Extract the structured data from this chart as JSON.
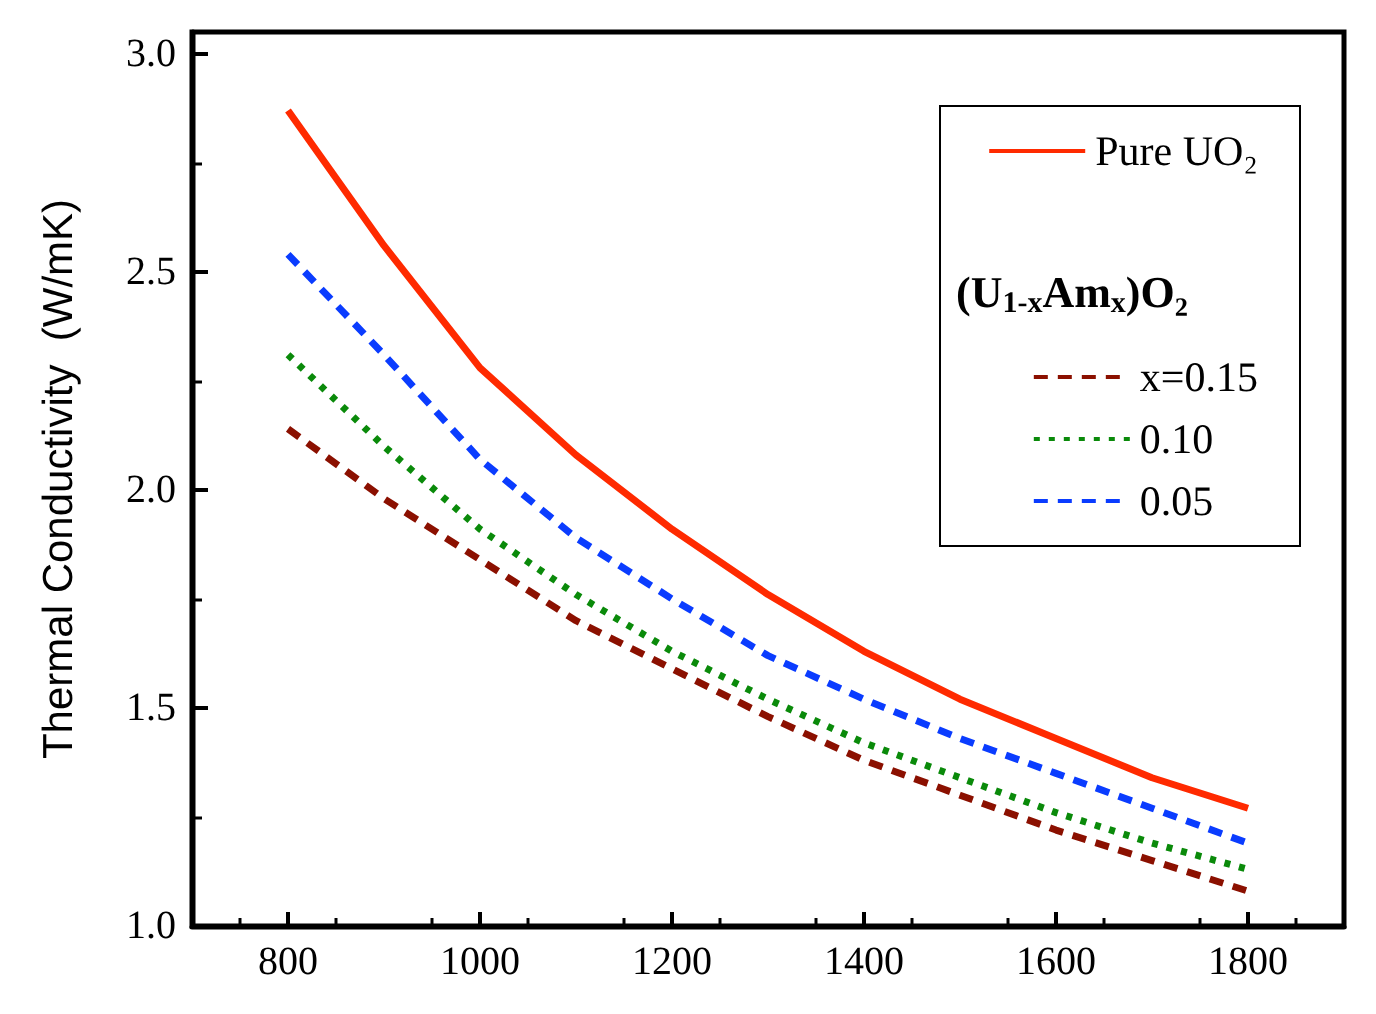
{
  "chart_data": {
    "type": "line",
    "ylabel": "Thermal Conductivity  (W/mK)",
    "legend_title": "(U$_{1-x}$Am$_{x}$)O₂",
    "x": [
      800,
      900,
      1000,
      1100,
      1200,
      1300,
      1400,
      1500,
      1600,
      1700,
      1800
    ],
    "xlim": [
      700,
      1900
    ],
    "xticks": [
      800,
      1000,
      1200,
      1400,
      1600,
      1800
    ],
    "ylim": [
      1.0,
      3.05
    ],
    "yticks": [
      "1.0",
      {
        "value": 1.5,
        "label": "1.5"
      },
      {
        "value": 2.0,
        "label": "2.0"
      },
      {
        "value": 2.5,
        "label": "2.5"
      },
      {
        "value": 3.0,
        "label": "3.0"
      }
    ],
    "legend": "top right",
    "grid": false,
    "marker": "none",
    "series": [
      {
        "name": "Pure UO₂",
        "color": "#ff2a00",
        "line_style": "solid",
        "values": [
          2.87,
          2.56,
          2.28,
          2.08,
          1.91,
          1.76,
          1.63,
          1.52,
          1.43,
          1.34,
          1.27
        ]
      },
      {
        "name": "x=0.15",
        "color": "#8b1000",
        "line_style": "dashed",
        "values": [
          2.14,
          1.98,
          1.84,
          1.7,
          1.59,
          1.48,
          1.38,
          1.3,
          1.22,
          1.15,
          1.08
        ]
      },
      {
        "name": "0.10",
        "color": "#0a8a0a",
        "line_style": "dotted",
        "values": [
          2.31,
          2.1,
          1.91,
          1.76,
          1.63,
          1.52,
          1.42,
          1.34,
          1.26,
          1.19,
          1.13
        ]
      },
      {
        "name": "0.05",
        "color": "#0a3cff",
        "line_style": "dashed",
        "values": [
          2.54,
          2.31,
          2.07,
          1.89,
          1.75,
          1.62,
          1.52,
          1.43,
          1.35,
          1.27,
          1.19
        ]
      }
    ]
  }
}
